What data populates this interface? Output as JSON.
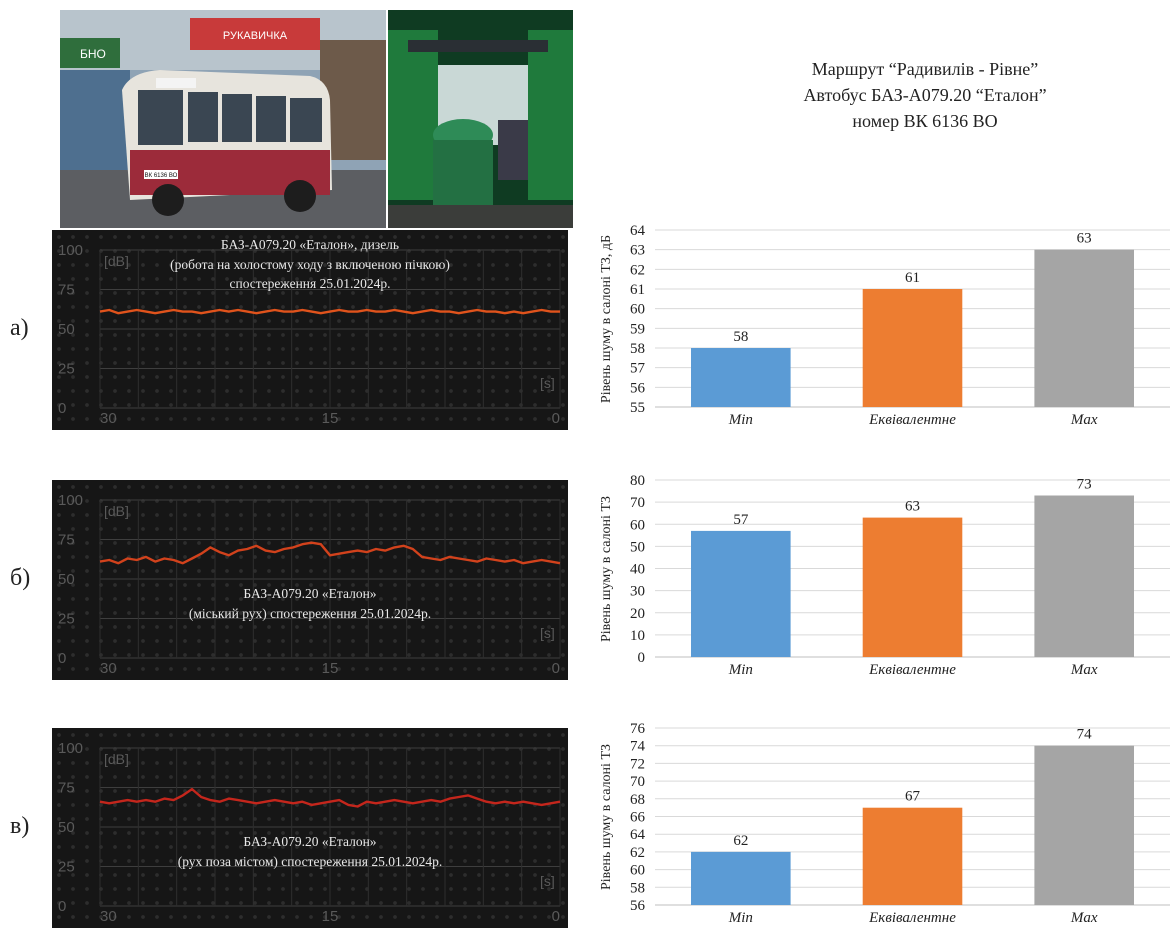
{
  "header": {
    "line1": "Маршрут “Радивилів - Рівне”",
    "line2": "Автобус БАЗ-А079.20 “Еталон”",
    "line3": "номер ВК 6136 ВО"
  },
  "photos": {
    "bus_sign_1": "РУКАВИЧКА",
    "bus_sign_2": "БНО",
    "bus_plate": "ВК 6136 ВО"
  },
  "rows": [
    {
      "letter": "а)",
      "meter": {
        "y_ticks": [
          "100",
          "75",
          "50",
          "25",
          "0"
        ],
        "x_ticks": [
          "30",
          "15",
          "0"
        ],
        "unit_y": "[dB]",
        "unit_x": "[s]",
        "caption_lines": [
          "БАЗ-А079.20 «Еталон», дизель",
          "(робота на холостому ходу з включеною пічкою)",
          "спостереження 25.01.2024р."
        ],
        "caption_position": "top",
        "line_color": "#e0531c",
        "level_series": [
          61,
          62,
          60,
          61,
          62,
          61,
          60,
          61,
          62,
          61,
          61,
          60,
          61,
          62,
          61,
          62,
          61,
          60,
          61,
          62,
          61,
          61,
          62,
          61,
          60,
          61,
          62,
          61,
          61,
          62,
          61,
          61,
          62,
          61,
          60,
          61,
          62,
          61,
          61,
          60,
          61,
          62,
          61,
          61,
          60,
          61,
          60,
          61,
          62,
          61,
          61
        ]
      },
      "chart_data": {
        "type": "bar",
        "categories": [
          "Min",
          "Еквівалентне",
          "Max"
        ],
        "values": [
          58,
          61,
          63
        ],
        "colors": [
          "#5b9bd5",
          "#ed7d31",
          "#a5a5a5"
        ],
        "ylabel": "Рівень шуму в салоні ТЗ, дБ",
        "ylim": [
          55,
          64
        ],
        "yticks": [
          55,
          56,
          57,
          58,
          59,
          60,
          61,
          62,
          63,
          64
        ],
        "grid": true
      }
    },
    {
      "letter": "б)",
      "meter": {
        "y_ticks": [
          "100",
          "75",
          "50",
          "25",
          "0"
        ],
        "x_ticks": [
          "30",
          "15",
          "0"
        ],
        "unit_y": "[dB]",
        "unit_x": "[s]",
        "caption_lines": [
          "БАЗ-А079.20 «Еталон»",
          "(міський рух) спостереження 25.01.2024р."
        ],
        "caption_position": "bottom",
        "line_color": "#d2421c",
        "level_series": [
          61,
          62,
          60,
          63,
          62,
          64,
          61,
          63,
          62,
          60,
          63,
          66,
          70,
          67,
          65,
          68,
          69,
          71,
          68,
          67,
          69,
          70,
          72,
          73,
          72,
          65,
          66,
          67,
          68,
          67,
          69,
          68,
          70,
          71,
          69,
          64,
          63,
          62,
          64,
          63,
          62,
          61,
          63,
          62,
          61,
          62,
          60,
          61,
          62,
          61,
          60
        ]
      },
      "chart_data": {
        "type": "bar",
        "categories": [
          "Min",
          "Еквівалентне",
          "Max"
        ],
        "values": [
          57,
          63,
          73
        ],
        "colors": [
          "#5b9bd5",
          "#ed7d31",
          "#a5a5a5"
        ],
        "ylabel": "Рівень шуму в салоні ТЗ",
        "ylim": [
          0,
          80
        ],
        "yticks": [
          0,
          10,
          20,
          30,
          40,
          50,
          60,
          70,
          80
        ],
        "grid": true
      }
    },
    {
      "letter": "в)",
      "meter": {
        "y_ticks": [
          "100",
          "75",
          "50",
          "25",
          "0"
        ],
        "x_ticks": [
          "30",
          "15",
          "0"
        ],
        "unit_y": "[dB]",
        "unit_x": "[s]",
        "caption_lines": [
          "БАЗ-А079.20 «Еталон»",
          "(рух поза містом) спостереження 25.01.2024р."
        ],
        "caption_position": "bottom",
        "line_color": "#c4261c",
        "level_series": [
          66,
          65,
          66,
          67,
          66,
          67,
          66,
          68,
          67,
          70,
          74,
          69,
          67,
          66,
          68,
          67,
          66,
          65,
          66,
          67,
          66,
          65,
          66,
          64,
          65,
          66,
          67,
          64,
          63,
          66,
          65,
          66,
          67,
          66,
          65,
          66,
          67,
          66,
          68,
          69,
          70,
          68,
          66,
          65,
          66,
          65,
          66,
          65,
          64,
          65,
          66
        ]
      },
      "chart_data": {
        "type": "bar",
        "categories": [
          "Min",
          "Еквівалентне",
          "Max"
        ],
        "values": [
          62,
          67,
          74
        ],
        "colors": [
          "#5b9bd5",
          "#ed7d31",
          "#a5a5a5"
        ],
        "ylabel": "Рівень шуму в салоні ТЗ",
        "ylim": [
          56,
          76
        ],
        "yticks": [
          56,
          58,
          60,
          62,
          64,
          66,
          68,
          70,
          72,
          74,
          76
        ],
        "grid": true
      }
    }
  ]
}
